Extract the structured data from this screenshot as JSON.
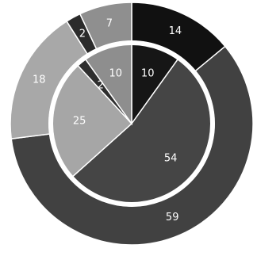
{
  "chart_data": {
    "type": "pie",
    "subtype": "nested-donut",
    "legend": "none",
    "series": [
      {
        "ring": "outer",
        "values": [
          14,
          59,
          18,
          2,
          7
        ],
        "colors": [
          "#111111",
          "#414141",
          "#a8a8a8",
          "#2b2b2b",
          "#8f8f8f"
        ]
      },
      {
        "ring": "inner",
        "values": [
          10,
          54,
          25,
          2,
          10
        ],
        "colors": [
          "#161616",
          "#454545",
          "#a6a6a6",
          "#2e2e2e",
          "#8e8e8e"
        ]
      }
    ],
    "divider_color": "#ffffff",
    "label_color": "#ffffff"
  }
}
